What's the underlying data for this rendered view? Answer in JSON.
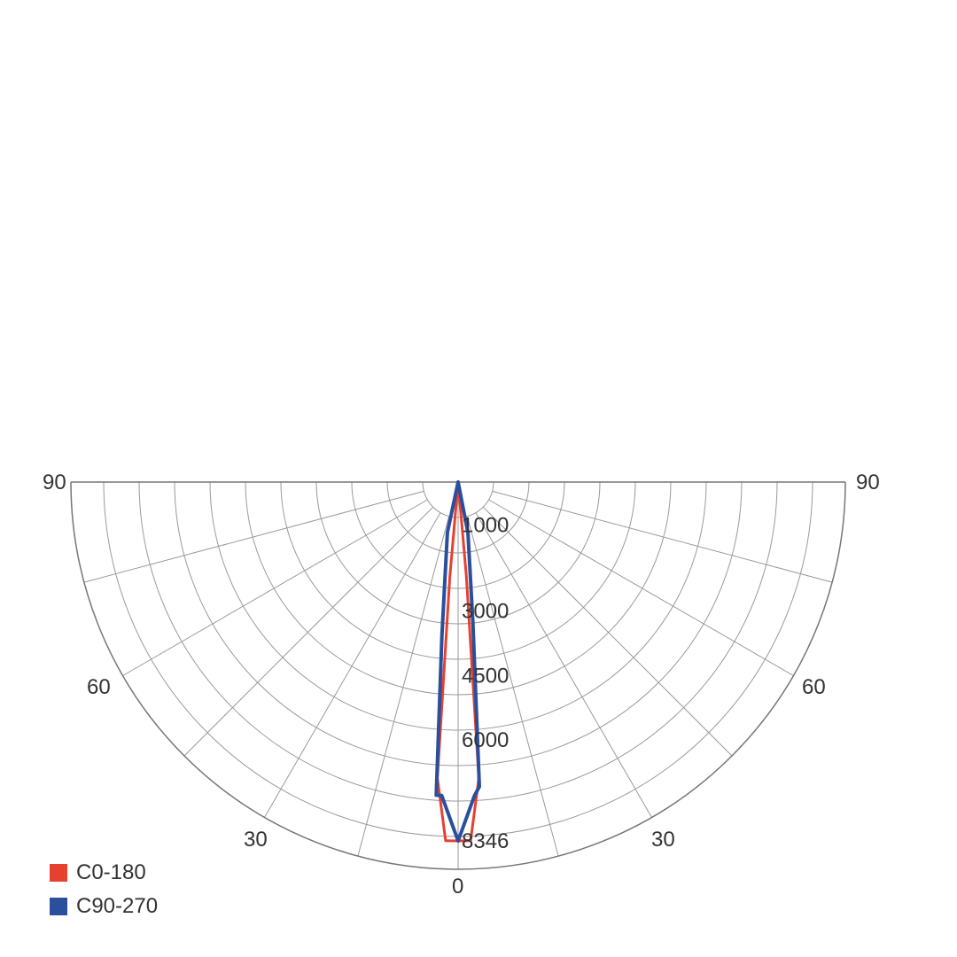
{
  "chart_data": {
    "type": "polar",
    "unit": "",
    "angle_labels": {
      "left": [
        "90",
        "60",
        "30"
      ],
      "bottom": "0",
      "right": [
        "90",
        "60",
        "30"
      ]
    },
    "angle_label_values": [
      90,
      60,
      30,
      0
    ],
    "radial_labels": [
      "1000",
      "3000",
      "4500",
      "6000",
      "8346"
    ],
    "radial_label_values": [
      1000,
      3000,
      4500,
      6000,
      8346
    ],
    "r_max": 8346,
    "grid_angle_step_deg": 15,
    "series": [
      {
        "name": "C0-180",
        "color": "#e8402f",
        "points": [
          {
            "gamma": -5,
            "value": 2200
          },
          {
            "gamma": -4,
            "value": 6900
          },
          {
            "gamma": -2,
            "value": 8346
          },
          {
            "gamma": 0,
            "value": 8346
          },
          {
            "gamma": 2,
            "value": 8346
          },
          {
            "gamma": 4,
            "value": 6900
          },
          {
            "gamma": 5,
            "value": 2200
          },
          {
            "gamma": 10,
            "value": 0
          }
        ]
      },
      {
        "name": "C90-270",
        "color": "#2a4f9c",
        "points": [
          {
            "gamma": -12,
            "value": 1200
          },
          {
            "gamma": -6,
            "value": 3600
          },
          {
            "gamma": -4,
            "value": 7300
          },
          {
            "gamma": -3,
            "value": 7300
          },
          {
            "gamma": 0,
            "value": 8346
          },
          {
            "gamma": 3,
            "value": 7300
          },
          {
            "gamma": 4,
            "value": 7100
          },
          {
            "gamma": 6,
            "value": 3300
          },
          {
            "gamma": 11,
            "value": 1200
          },
          {
            "gamma": 20,
            "value": 0
          }
        ]
      }
    ],
    "legend": {
      "position": "bottom-left",
      "items": [
        {
          "label": "C0-180",
          "color": "#e8402f"
        },
        {
          "label": "C90-270",
          "color": "#2a4f9c"
        }
      ]
    }
  }
}
